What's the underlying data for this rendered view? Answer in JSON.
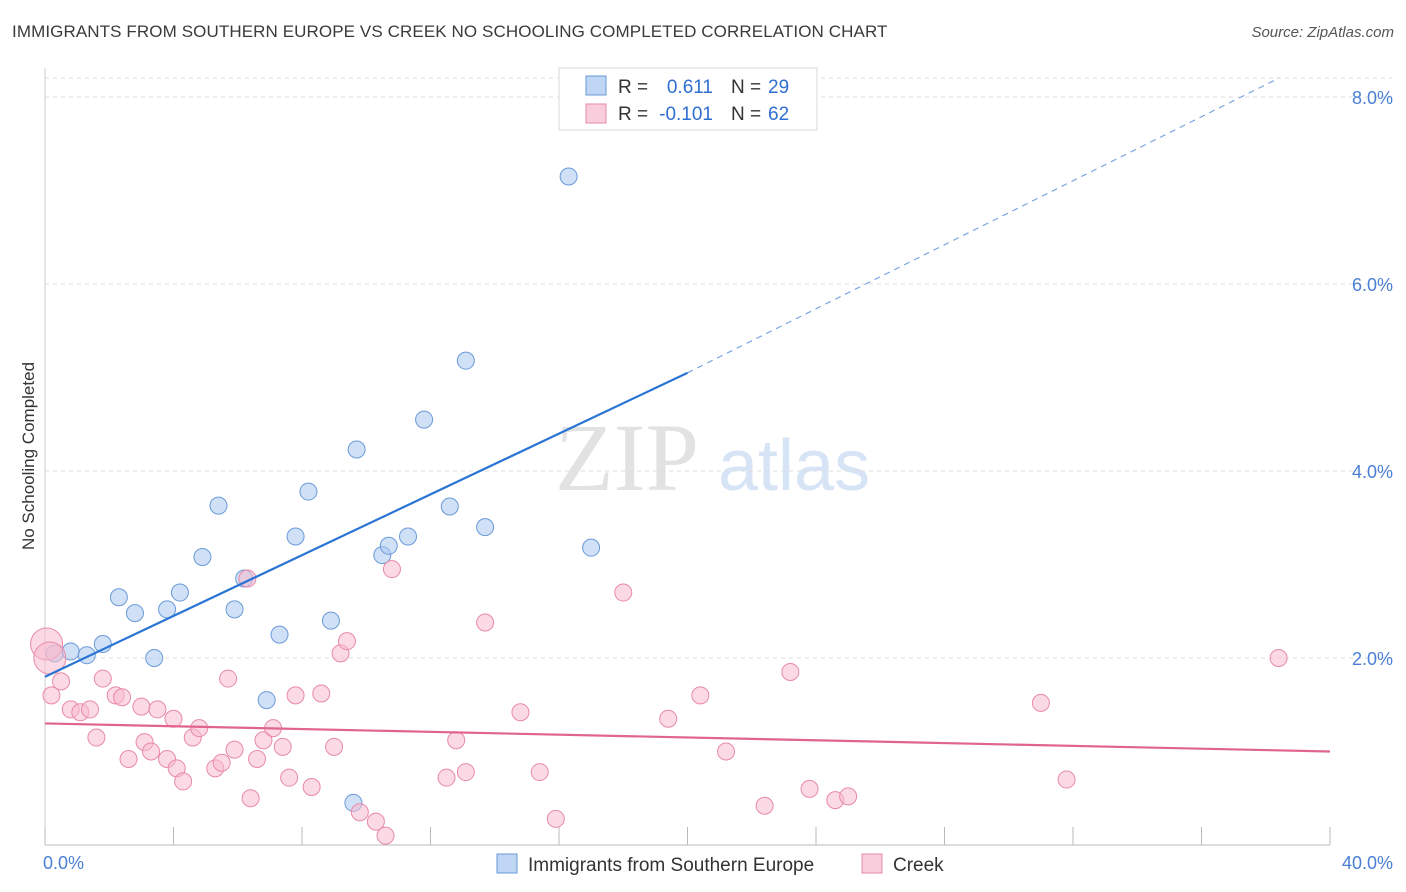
{
  "header": {
    "title": "IMMIGRANTS FROM SOUTHERN EUROPE VS CREEK NO SCHOOLING COMPLETED CORRELATION CHART",
    "source": "Source: ZipAtlas.com"
  },
  "watermark": {
    "part1": "ZIP",
    "part2": "atlas"
  },
  "legend": {
    "rows": [
      {
        "r_label": "R =",
        "r_value": "0.611",
        "n_label": "N =",
        "n_value": "29",
        "color": "#a9c8f0"
      },
      {
        "r_label": "R =",
        "r_value": "-0.101",
        "n_label": "N =",
        "n_value": "62",
        "color": "#f7bcd0"
      }
    ]
  },
  "bottom_legend": {
    "items": [
      {
        "label": "Immigrants from Southern Europe",
        "color": "#a9c8f0"
      },
      {
        "label": "Creek",
        "color": "#f7bcd0"
      }
    ]
  },
  "chart_data": {
    "type": "scatter",
    "xlabel": "",
    "ylabel": "No Schooling Completed",
    "xlim": [
      0,
      40
    ],
    "ylim": [
      0,
      8
    ],
    "x_tick_labels": [
      "0.0%",
      "40.0%"
    ],
    "y_tick_labels": [
      {
        "value": 2,
        "label": "2.0%"
      },
      {
        "value": 4,
        "label": "4.0%"
      },
      {
        "value": 6,
        "label": "6.0%"
      },
      {
        "value": 8,
        "label": "8.0%"
      }
    ],
    "series": [
      {
        "name": "Immigrants from Southern Europe",
        "color": "#a9c8f0",
        "stroke": "#6a9ad8",
        "trend": {
          "x0": 0,
          "y0": 1.8,
          "x1": 20,
          "y1": 5.05,
          "x_dash_end": 38.4,
          "y_dash_end": 8.2,
          "color": "#2a74d4"
        },
        "points": [
          [
            0.3,
            2.05
          ],
          [
            0.8,
            2.07
          ],
          [
            1.3,
            2.03
          ],
          [
            1.8,
            2.15
          ],
          [
            2.3,
            2.65
          ],
          [
            2.8,
            2.48
          ],
          [
            3.4,
            2.0
          ],
          [
            3.8,
            2.52
          ],
          [
            4.2,
            2.7
          ],
          [
            4.9,
            3.08
          ],
          [
            5.4,
            3.63
          ],
          [
            5.9,
            2.52
          ],
          [
            6.2,
            2.85
          ],
          [
            6.9,
            1.55
          ],
          [
            7.3,
            2.25
          ],
          [
            7.8,
            3.3
          ],
          [
            8.2,
            3.78
          ],
          [
            8.9,
            2.4
          ],
          [
            9.6,
            0.45
          ],
          [
            9.7,
            4.23
          ],
          [
            10.5,
            3.1
          ],
          [
            10.7,
            3.2
          ],
          [
            11.3,
            3.3
          ],
          [
            11.8,
            4.55
          ],
          [
            12.6,
            3.62
          ],
          [
            13.1,
            5.18
          ],
          [
            13.7,
            3.4
          ],
          [
            16.3,
            7.15
          ],
          [
            17.0,
            3.18
          ]
        ]
      },
      {
        "name": "Creek",
        "color": "#f7bcd0",
        "stroke": "#e88aa8",
        "trend": {
          "x0": 0,
          "y0": 1.3,
          "x1": 40,
          "y1": 1.0,
          "color": "#e0648c"
        },
        "points": [
          [
            0.2,
            1.6
          ],
          [
            0.5,
            1.75
          ],
          [
            0.8,
            1.45
          ],
          [
            1.1,
            1.42
          ],
          [
            1.4,
            1.45
          ],
          [
            1.6,
            1.15
          ],
          [
            1.8,
            1.78
          ],
          [
            2.2,
            1.6
          ],
          [
            2.4,
            1.58
          ],
          [
            2.6,
            0.92
          ],
          [
            3.0,
            1.48
          ],
          [
            3.1,
            1.1
          ],
          [
            3.3,
            1.0
          ],
          [
            3.5,
            1.45
          ],
          [
            3.8,
            0.92
          ],
          [
            4.0,
            1.35
          ],
          [
            4.1,
            0.82
          ],
          [
            4.3,
            0.68
          ],
          [
            4.6,
            1.15
          ],
          [
            4.8,
            1.25
          ],
          [
            5.3,
            0.82
          ],
          [
            5.5,
            0.88
          ],
          [
            5.7,
            1.78
          ],
          [
            5.9,
            1.02
          ],
          [
            6.4,
            0.5
          ],
          [
            6.6,
            0.92
          ],
          [
            6.8,
            1.12
          ],
          [
            7.1,
            1.25
          ],
          [
            7.4,
            1.05
          ],
          [
            7.6,
            0.72
          ],
          [
            7.8,
            1.6
          ],
          [
            8.3,
            0.62
          ],
          [
            8.6,
            1.62
          ],
          [
            9.0,
            1.05
          ],
          [
            9.2,
            2.05
          ],
          [
            9.4,
            2.18
          ],
          [
            9.8,
            0.35
          ],
          [
            10.3,
            0.25
          ],
          [
            10.6,
            0.1
          ],
          [
            10.8,
            2.95
          ],
          [
            12.5,
            0.72
          ],
          [
            12.8,
            1.12
          ],
          [
            13.1,
            0.78
          ],
          [
            13.7,
            2.38
          ],
          [
            14.8,
            1.42
          ],
          [
            15.4,
            0.78
          ],
          [
            15.9,
            0.28
          ],
          [
            18.0,
            2.7
          ],
          [
            19.4,
            1.35
          ],
          [
            20.4,
            1.6
          ],
          [
            21.2,
            1.0
          ],
          [
            22.4,
            0.42
          ],
          [
            23.2,
            1.85
          ],
          [
            23.8,
            0.6
          ],
          [
            24.6,
            0.48
          ],
          [
            25.0,
            0.52
          ],
          [
            31.0,
            1.52
          ],
          [
            31.8,
            0.7
          ],
          [
            38.4,
            2.0
          ],
          [
            0.05,
            2.15
          ],
          [
            0.15,
            2.0
          ],
          [
            6.3,
            2.85
          ]
        ]
      }
    ]
  }
}
